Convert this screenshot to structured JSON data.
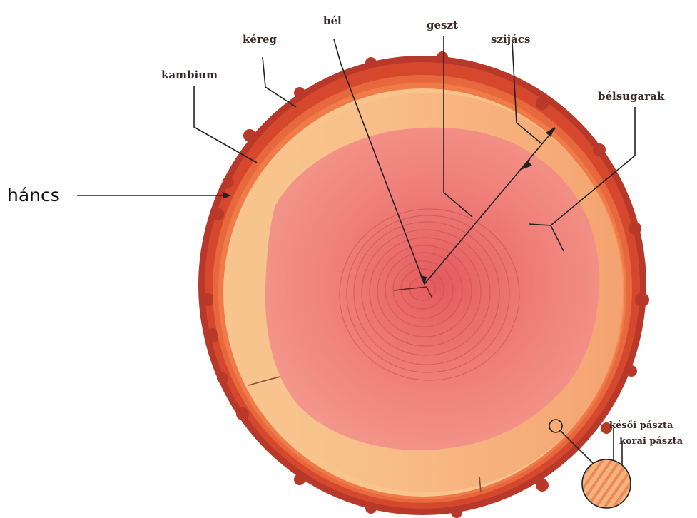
{
  "labels": {
    "bel": "bél",
    "kereg": "kéreg",
    "geszt": "geszt",
    "szijacs": "szijács",
    "kambium": "kambium",
    "belsugarak": "bélsugarak",
    "hancs": "háncs",
    "kesoi_paszta": "késői pászta",
    "korai_paszta": "korai pászta"
  },
  "colors": {
    "bark_outer": "#c8402a",
    "bark_inner": "#e0603a",
    "sapwood": "#f8c08a",
    "heartwood": "#f08878",
    "core": "#e86a6a",
    "sapwood_right": "#f5a070",
    "ring_line": "#c04848",
    "leader_line": "#222222"
  }
}
